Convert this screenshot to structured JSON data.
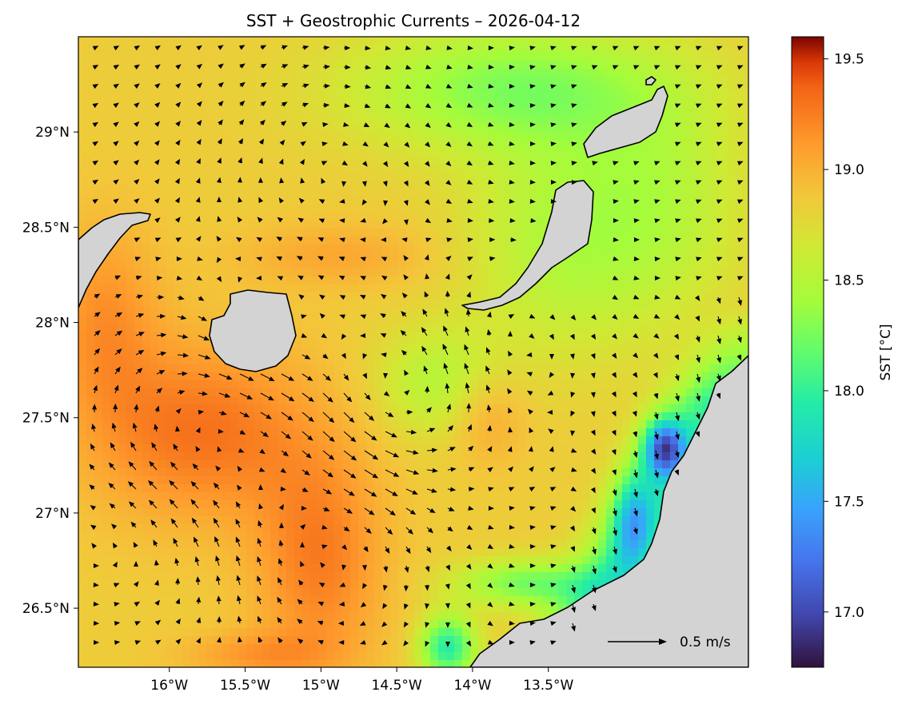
{
  "title": "SST + Geostrophic Currents – 2026-04-12",
  "map": {
    "lon_range": [
      -16.6,
      -12.18
    ],
    "lat_range": [
      26.19,
      29.5
    ],
    "x_ticks": [
      {
        "lon": -16.0,
        "label": "16°W"
      },
      {
        "lon": -15.5,
        "label": "15.5°W"
      },
      {
        "lon": -15.0,
        "label": "15°W"
      },
      {
        "lon": -14.5,
        "label": "14.5°W"
      },
      {
        "lon": -14.0,
        "label": "14°W"
      },
      {
        "lon": -13.5,
        "label": "13.5°W"
      }
    ],
    "y_ticks": [
      {
        "lat": 29.0,
        "label": "29°N"
      },
      {
        "lat": 28.5,
        "label": "28.5°N"
      },
      {
        "lat": 28.0,
        "label": "28°N"
      },
      {
        "lat": 27.5,
        "label": "27.5°N"
      },
      {
        "lat": 27.0,
        "label": "27°N"
      },
      {
        "lat": 26.5,
        "label": "26.5°N"
      }
    ],
    "land_color": "#d3d3d3",
    "arrow_color": "#000000",
    "reference_arrow": {
      "speed_m_s": 0.5,
      "label": "0.5 m/s"
    }
  },
  "colorbar": {
    "label": "SST [°C]",
    "range": [
      16.75,
      19.6
    ],
    "colormap": "turbo",
    "ticks": [
      {
        "value": 17.0,
        "label": "17.0"
      },
      {
        "value": 17.5,
        "label": "17.5"
      },
      {
        "value": 18.0,
        "label": "18.0"
      },
      {
        "value": 18.5,
        "label": "18.5"
      },
      {
        "value": 19.0,
        "label": "19.0"
      },
      {
        "value": 19.5,
        "label": "19.5"
      }
    ]
  }
}
